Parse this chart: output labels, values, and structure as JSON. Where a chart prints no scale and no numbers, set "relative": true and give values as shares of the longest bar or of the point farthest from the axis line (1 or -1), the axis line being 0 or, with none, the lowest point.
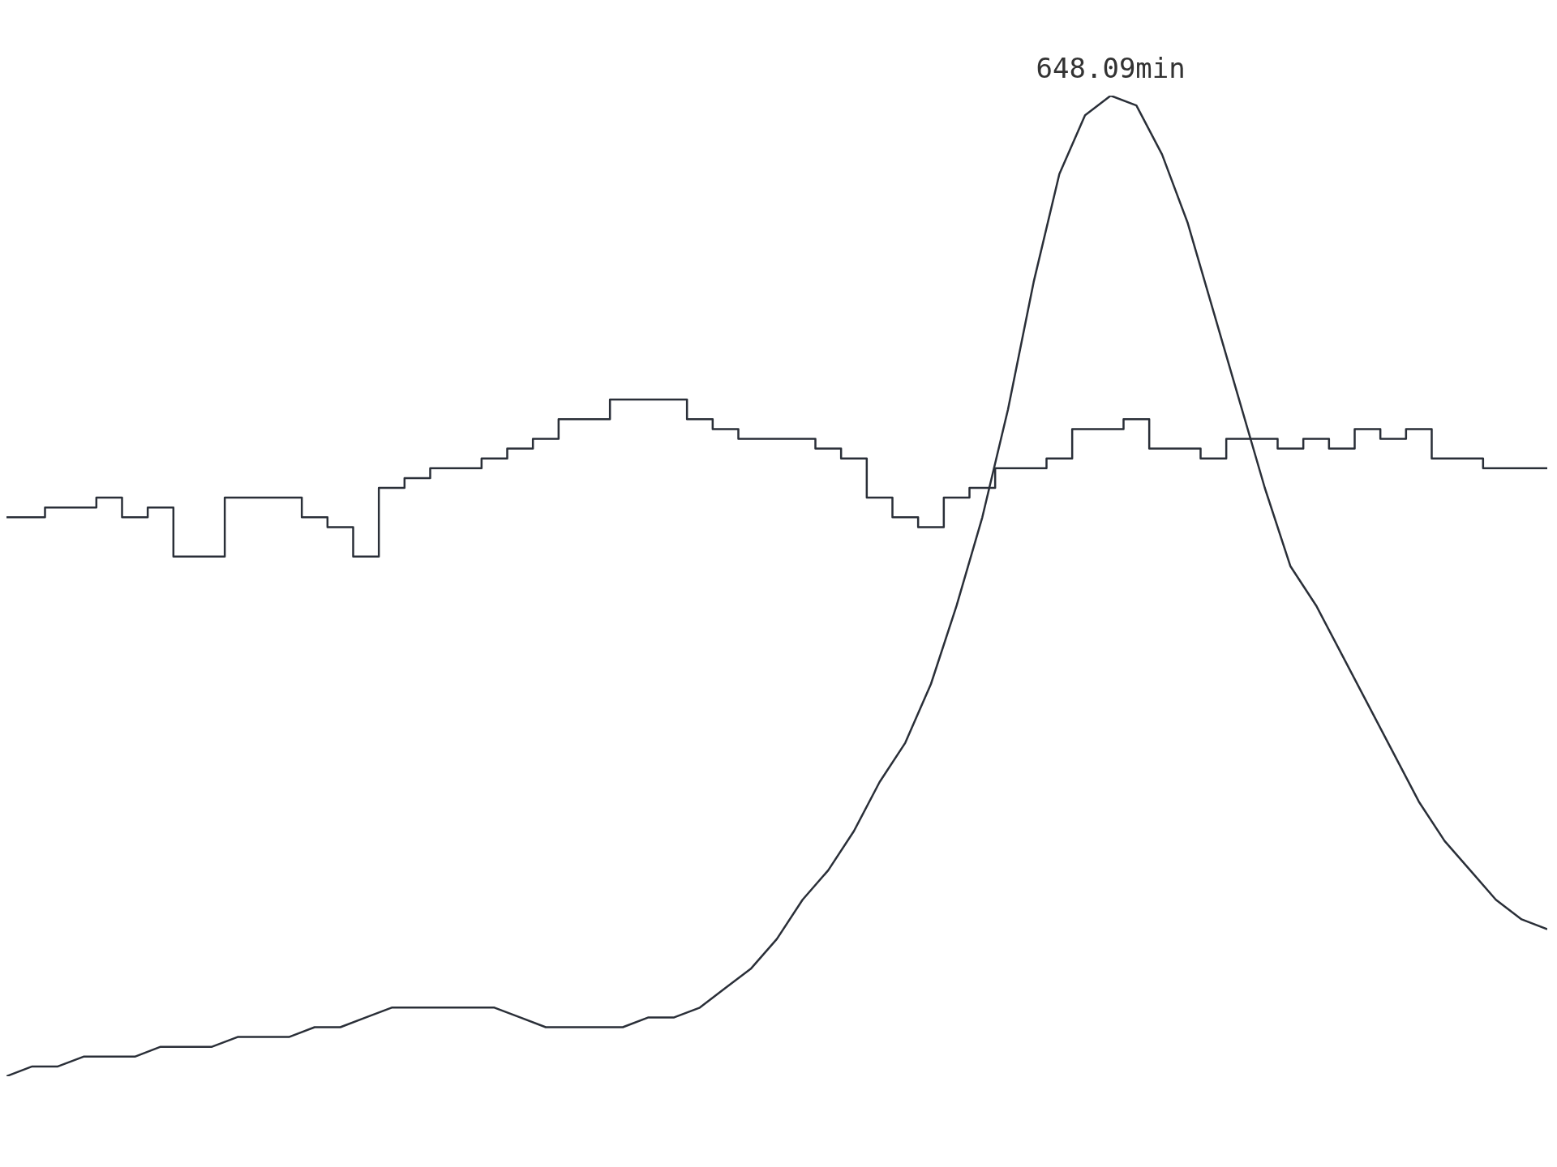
{
  "chart_data": {
    "type": "line",
    "relative": true,
    "categories": [
      null,
      null,
      null,
      null,
      null,
      null,
      null,
      null,
      null,
      null,
      null,
      null,
      null,
      null,
      null,
      null,
      null,
      null,
      null,
      null,
      null,
      null,
      null,
      null,
      null,
      null,
      null,
      null,
      null,
      null,
      null,
      null,
      null,
      null,
      null,
      null,
      null,
      null,
      null,
      null,
      null,
      null,
      null,
      null,
      null,
      null,
      null,
      null,
      null,
      null,
      null,
      null,
      null,
      null,
      null,
      null,
      null,
      null,
      null,
      null,
      null
    ],
    "series": [
      {
        "color": "#2a2f38",
        "values": [
          0.0,
          0.01,
          0.01,
          0.02,
          0.02,
          0.02,
          0.03,
          0.03,
          0.03,
          0.04,
          0.04,
          0.04,
          0.05,
          0.05,
          0.06,
          0.07,
          0.07,
          0.07,
          0.07,
          0.07,
          0.06,
          0.05,
          0.05,
          0.05,
          0.05,
          0.06,
          0.06,
          0.07,
          0.09,
          0.11,
          0.14,
          0.18,
          0.21,
          0.25,
          0.3,
          0.34,
          0.4,
          0.48,
          0.57,
          0.68,
          0.81,
          0.92,
          0.98,
          1.0,
          0.99,
          0.94,
          0.87,
          0.78,
          0.69,
          0.6,
          0.52,
          0.48,
          0.43,
          0.38,
          0.33,
          0.28,
          0.24,
          0.21,
          0.18,
          0.16,
          0.15
        ]
      },
      {
        "type": "step",
        "color": "#2a2f38",
        "values": [
          0.57,
          0.57,
          0.58,
          0.58,
          0.59,
          0.57,
          0.58,
          0.53,
          0.53,
          0.59,
          0.59,
          0.59,
          0.57,
          0.56,
          0.53,
          0.6,
          0.61,
          0.62,
          0.62,
          0.63,
          0.64,
          0.65,
          0.67,
          0.67,
          0.69,
          0.69,
          0.69,
          0.67,
          0.66,
          0.65,
          0.65,
          0.65,
          0.64,
          0.63,
          0.59,
          0.57,
          0.56,
          0.59,
          0.6,
          0.62,
          0.62,
          0.63,
          0.66,
          0.66,
          0.67,
          0.64,
          0.64,
          0.63,
          0.65,
          0.65,
          0.64,
          0.65,
          0.64,
          0.66,
          0.65,
          0.66,
          0.63,
          0.63,
          0.62,
          0.62,
          0.62
        ]
      }
    ],
    "annotations": [
      {
        "text": "648.09min",
        "y": 1.0
      }
    ]
  }
}
